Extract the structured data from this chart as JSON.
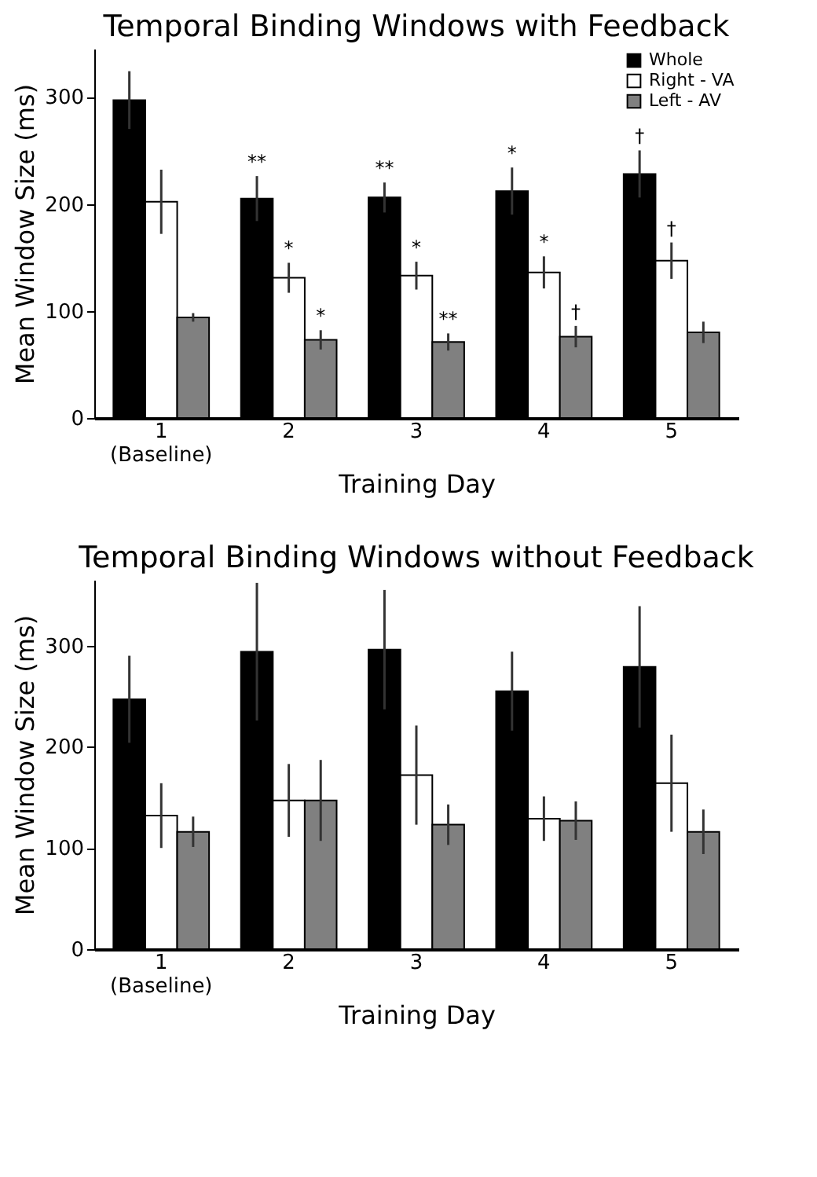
{
  "chart_data": [
    {
      "type": "bar",
      "title": "Temporal Binding Windows with Feedback",
      "xlabel": "Training Day",
      "ylabel": "Mean Window Size (ms)",
      "categories": [
        "1\n(Baseline)",
        "2",
        "3",
        "4",
        "5"
      ],
      "series": [
        {
          "name": "Whole",
          "color": "#000000",
          "values": [
            297,
            205,
            206,
            212,
            228
          ],
          "errors": [
            27,
            21,
            14,
            22,
            22
          ],
          "value_labels": [
            null,
            "**",
            "**",
            "*",
            "†"
          ]
        },
        {
          "name": "Right - VA",
          "color": "#ffffff",
          "values": [
            202,
            131,
            133,
            136,
            147
          ],
          "errors": [
            30,
            14,
            13,
            15,
            17
          ],
          "value_labels": [
            null,
            "*",
            "*",
            "*",
            "†"
          ]
        },
        {
          "name": "Left - AV",
          "color": "#808080",
          "values": [
            94,
            73,
            71,
            76,
            80
          ],
          "errors": [
            4,
            9,
            8,
            10,
            10
          ],
          "value_labels": [
            null,
            "*",
            "**",
            "†",
            null
          ]
        }
      ],
      "ylim": [
        0,
        345
      ],
      "yticks": [
        0,
        100,
        200,
        300
      ],
      "grid": false,
      "legend": "top right"
    },
    {
      "type": "bar",
      "title": "Temporal Binding Windows without Feedback",
      "xlabel": "Training Day",
      "ylabel": "Mean Window Size (ms)",
      "categories": [
        "1\n(Baseline)",
        "2",
        "3",
        "4",
        "5"
      ],
      "series": [
        {
          "color": "#000000",
          "values": [
            247,
            294,
            296,
            255,
            279
          ],
          "errors": [
            43,
            68,
            59,
            39,
            60
          ]
        },
        {
          "color": "#ffffff",
          "values": [
            132,
            147,
            172,
            129,
            164
          ],
          "errors": [
            32,
            36,
            49,
            22,
            48
          ]
        },
        {
          "color": "#808080",
          "values": [
            116,
            147,
            123,
            127,
            116
          ],
          "errors": [
            15,
            40,
            20,
            19,
            22
          ]
        }
      ],
      "ylim": [
        0,
        365
      ],
      "yticks": [
        0,
        100,
        200,
        300
      ],
      "grid": false,
      "legend": false
    }
  ]
}
